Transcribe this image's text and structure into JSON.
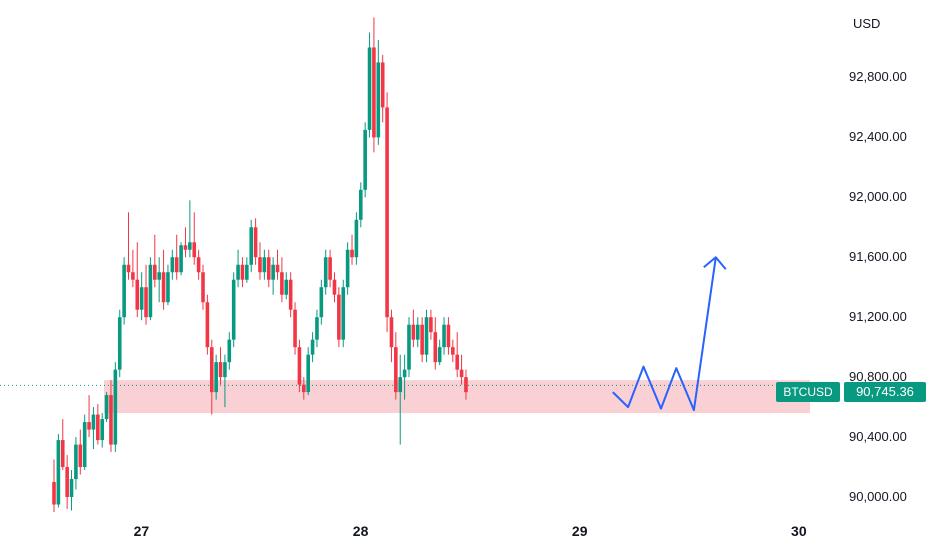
{
  "chart_data": {
    "type": "candlestick",
    "symbol": "BTCUSD",
    "currency": "USD",
    "last_price": "90,745.36",
    "x_ticks": [
      "27",
      "28",
      "29",
      "30"
    ],
    "y_ticks": [
      "90,000.00",
      "90,400.00",
      "90,800.00",
      "91,200.00",
      "91,600.00",
      "92,000.00",
      "92,400.00",
      "92,800.00"
    ],
    "ylim": [
      89900,
      93250
    ],
    "xlim": [
      26.6,
      30.05
    ],
    "support_zone": {
      "from": 90560,
      "to": 90780,
      "x_start": 26.6,
      "x_end": 30.05
    },
    "projection_path": [
      [
        29.15,
        90700
      ],
      [
        29.22,
        90600
      ],
      [
        29.29,
        90870
      ],
      [
        29.37,
        90590
      ],
      [
        29.44,
        90860
      ],
      [
        29.52,
        90580
      ],
      [
        29.62,
        91600
      ]
    ],
    "colors": {
      "up": "#089981",
      "down": "#f23645",
      "zone": "#f8c9cc",
      "projection": "#2962ff"
    },
    "candles": [
      [
        26.6,
        90100,
        90250,
        89900,
        89950
      ],
      [
        26.62,
        89950,
        90420,
        89930,
        90380
      ],
      [
        26.64,
        90380,
        90520,
        90180,
        90200
      ],
      [
        26.66,
        90200,
        90280,
        89920,
        90000
      ],
      [
        26.68,
        90000,
        90180,
        89910,
        90120
      ],
      [
        26.7,
        90120,
        90400,
        90050,
        90350
      ],
      [
        26.72,
        90350,
        90450,
        90150,
        90200
      ],
      [
        26.74,
        90200,
        90550,
        90180,
        90500
      ],
      [
        26.76,
        90500,
        90680,
        90400,
        90450
      ],
      [
        26.78,
        90450,
        90600,
        90320,
        90550
      ],
      [
        26.8,
        90550,
        90620,
        90350,
        90380
      ],
      [
        26.82,
        90380,
        90560,
        90330,
        90520
      ],
      [
        26.84,
        90520,
        90700,
        90500,
        90680
      ],
      [
        26.86,
        90680,
        90780,
        90300,
        90350
      ],
      [
        26.88,
        90350,
        90900,
        90300,
        90850
      ],
      [
        26.9,
        90850,
        91250,
        90800,
        91200
      ],
      [
        26.92,
        91200,
        91600,
        91150,
        91550
      ],
      [
        26.94,
        91550,
        91900,
        91450,
        91500
      ],
      [
        26.96,
        91500,
        91650,
        91400,
        91450
      ],
      [
        26.98,
        91450,
        91700,
        91200,
        91250
      ],
      [
        27.0,
        91250,
        91500,
        91180,
        91400
      ],
      [
        27.02,
        91400,
        91550,
        91150,
        91200
      ],
      [
        27.04,
        91200,
        91600,
        91180,
        91550
      ],
      [
        27.06,
        91550,
        91750,
        91400,
        91450
      ],
      [
        27.08,
        91450,
        91600,
        91300,
        91500
      ],
      [
        27.1,
        91500,
        91650,
        91250,
        91300
      ],
      [
        27.12,
        91300,
        91550,
        91280,
        91500
      ],
      [
        27.14,
        91500,
        91650,
        91450,
        91600
      ],
      [
        27.16,
        91600,
        91750,
        91450,
        91500
      ],
      [
        27.18,
        91500,
        91700,
        91480,
        91680
      ],
      [
        27.2,
        91680,
        91800,
        91600,
        91650
      ],
      [
        27.22,
        91650,
        91980,
        91600,
        91700
      ],
      [
        27.24,
        91700,
        91900,
        91550,
        91600
      ],
      [
        27.26,
        91600,
        91650,
        91450,
        91500
      ],
      [
        27.28,
        91500,
        91550,
        91250,
        91300
      ],
      [
        27.3,
        91300,
        91350,
        90950,
        91000
      ],
      [
        27.32,
        91000,
        91050,
        90550,
        90700
      ],
      [
        27.34,
        90700,
        90950,
        90650,
        90900
      ],
      [
        27.36,
        90900,
        91000,
        90750,
        90800
      ],
      [
        27.38,
        90800,
        90950,
        90600,
        90900
      ],
      [
        27.4,
        90900,
        91100,
        90850,
        91050
      ],
      [
        27.42,
        91050,
        91500,
        91000,
        91450
      ],
      [
        27.44,
        91450,
        91650,
        91400,
        91550
      ],
      [
        27.46,
        91550,
        91600,
        91400,
        91450
      ],
      [
        27.48,
        91450,
        91600,
        91430,
        91550
      ],
      [
        27.5,
        91550,
        91850,
        91500,
        91800
      ],
      [
        27.52,
        91800,
        91860,
        91550,
        91600
      ],
      [
        27.54,
        91600,
        91700,
        91450,
        91500
      ],
      [
        27.56,
        91500,
        91650,
        91450,
        91600
      ],
      [
        27.58,
        91600,
        91650,
        91400,
        91450
      ],
      [
        27.6,
        91450,
        91600,
        91350,
        91550
      ],
      [
        27.62,
        91550,
        91650,
        91450,
        91500
      ],
      [
        27.64,
        91500,
        91600,
        91300,
        91350
      ],
      [
        27.66,
        91350,
        91500,
        91320,
        91450
      ],
      [
        27.68,
        91450,
        91500,
        91200,
        91250
      ],
      [
        27.7,
        91250,
        91300,
        90950,
        91000
      ],
      [
        27.72,
        91000,
        91050,
        90700,
        90750
      ],
      [
        27.74,
        90750,
        90800,
        90650,
        90700
      ],
      [
        27.76,
        90700,
        91000,
        90680,
        90950
      ],
      [
        27.78,
        90950,
        91100,
        90900,
        91050
      ],
      [
        27.8,
        91050,
        91250,
        91000,
        91200
      ],
      [
        27.82,
        91200,
        91450,
        91150,
        91400
      ],
      [
        27.84,
        91400,
        91650,
        91350,
        91600
      ],
      [
        27.86,
        91600,
        91650,
        91400,
        91450
      ],
      [
        27.88,
        91450,
        91500,
        91300,
        91350
      ],
      [
        27.9,
        91350,
        91400,
        91000,
        91050
      ],
      [
        27.92,
        91050,
        91450,
        91000,
        91400
      ],
      [
        27.94,
        91400,
        91700,
        91350,
        91650
      ],
      [
        27.96,
        91650,
        91750,
        91550,
        91600
      ],
      [
        27.98,
        91600,
        91900,
        91550,
        91850
      ],
      [
        28.0,
        91850,
        92100,
        91800,
        92050
      ],
      [
        28.02,
        92050,
        92500,
        92000,
        92450
      ],
      [
        28.04,
        92450,
        93100,
        92400,
        93000
      ],
      [
        28.06,
        93000,
        93200,
        92300,
        92400
      ],
      [
        28.08,
        92400,
        93050,
        92350,
        92900
      ],
      [
        28.1,
        92900,
        92950,
        92500,
        92600
      ],
      [
        28.12,
        92600,
        92700,
        91100,
        91200
      ],
      [
        28.14,
        91200,
        91250,
        90900,
        91000
      ],
      [
        28.16,
        91000,
        91100,
        90650,
        90700
      ],
      [
        28.18,
        90700,
        90950,
        90350,
        90800
      ],
      [
        28.2,
        90800,
        90950,
        90650,
        90850
      ],
      [
        28.22,
        90850,
        91200,
        90800,
        91150
      ],
      [
        28.24,
        91150,
        91250,
        91000,
        91050
      ],
      [
        28.26,
        91050,
        91200,
        91000,
        91150
      ],
      [
        28.28,
        91150,
        91200,
        90900,
        90950
      ],
      [
        28.3,
        90950,
        91250,
        90900,
        91200
      ],
      [
        28.32,
        91200,
        91250,
        91050,
        91100
      ],
      [
        28.34,
        91100,
        91200,
        90850,
        90900
      ],
      [
        28.36,
        90900,
        91050,
        90880,
        91000
      ],
      [
        28.38,
        91000,
        91200,
        90950,
        91150
      ],
      [
        28.4,
        91150,
        91200,
        90950,
        91000
      ],
      [
        28.42,
        91000,
        91050,
        90900,
        90950
      ],
      [
        28.44,
        90950,
        91100,
        90800,
        90850
      ],
      [
        28.46,
        90850,
        90950,
        90750,
        90800
      ],
      [
        28.48,
        90800,
        90850,
        90650,
        90700
      ]
    ]
  }
}
